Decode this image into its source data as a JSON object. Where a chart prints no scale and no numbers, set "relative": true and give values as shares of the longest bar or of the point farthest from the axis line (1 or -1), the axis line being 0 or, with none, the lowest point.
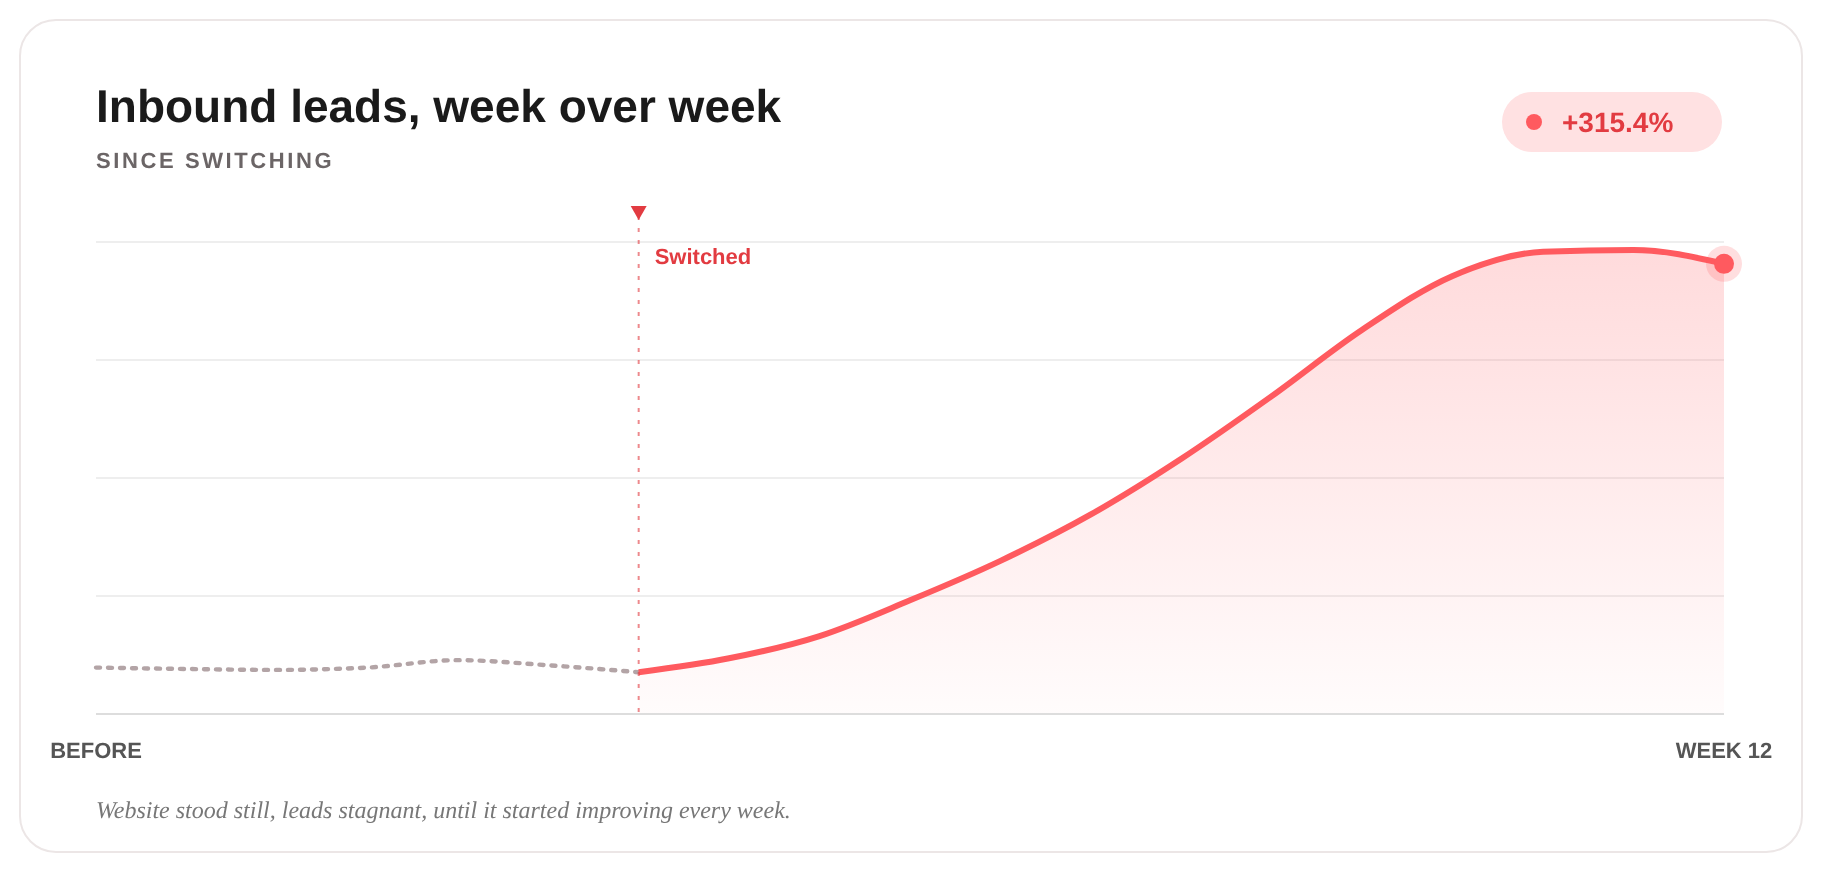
{
  "chart_data": {
    "type": "line",
    "title": "Inbound leads, week over week",
    "subtitle": "SINCE SWITCHING",
    "relative": true,
    "grid": "y",
    "legend": false,
    "categories": [
      "BEFORE",
      null,
      null,
      null,
      null,
      null,
      null,
      null,
      null,
      null,
      null,
      null,
      null,
      null,
      null,
      null,
      null,
      null,
      "WEEK 12"
    ],
    "series": [
      {
        "color": "#b3a4a6",
        "line_style": "dotted",
        "values": [
          0.1,
          0.097,
          0.095,
          0.1,
          0.116,
          0.105,
          0.09,
          null,
          null,
          null,
          null,
          null,
          null,
          null,
          null,
          null,
          null,
          null,
          null
        ]
      },
      {
        "type": "area",
        "color": "#ff5a5f",
        "line_style": "solid",
        "values": [
          null,
          null,
          null,
          null,
          null,
          null,
          0.09,
          0.12,
          0.168,
          0.245,
          0.33,
          0.43,
          0.55,
          0.685,
          0.828,
          0.944,
          0.996,
          1,
          0.97
        ]
      }
    ],
    "annotations": [
      "Switched",
      "+315.4%",
      "Website stood still, leads stagnant, until it started improving every week."
    ]
  }
}
